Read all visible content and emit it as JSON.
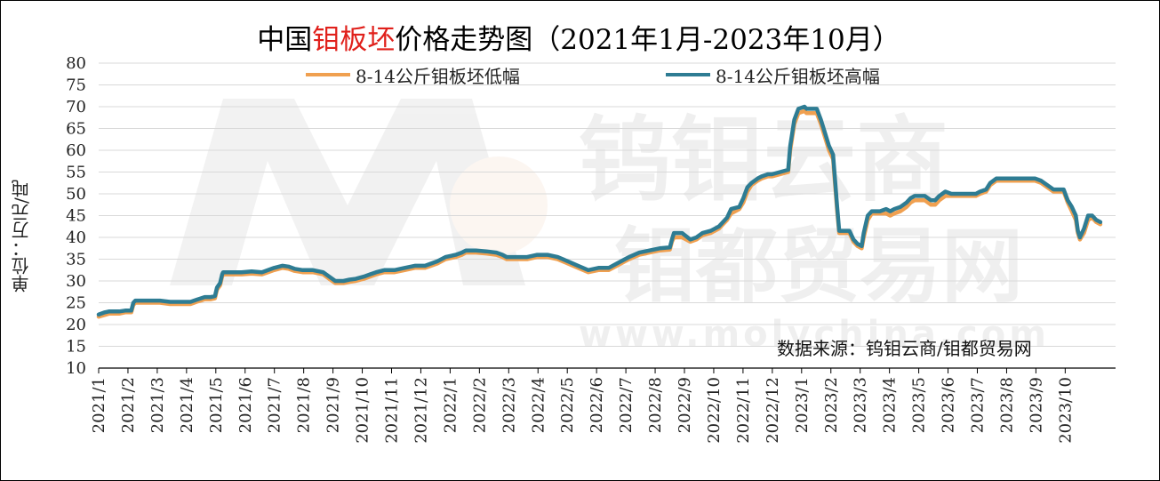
{
  "title": {
    "prefix": "中国",
    "highlight": "钼板坯",
    "suffix": "价格走势图（2021年1月-2023年10月）",
    "highlight_color": "#e0201b"
  },
  "y_axis_label": "单位：万元/吨",
  "source_text": "数据来源：钨钼云商/钼都贸易网",
  "watermark": {
    "line1": "钨钼云商",
    "line2": "钼都贸易网",
    "url": "www.molychina.com"
  },
  "chart_data": {
    "type": "line",
    "title": "中国钼板坯价格走势图（2021年1月-2023年10月）",
    "ylabel": "单位：万元/吨",
    "xlabel": "",
    "ylim": [
      10,
      80
    ],
    "yticks": [
      10,
      15,
      20,
      25,
      30,
      35,
      40,
      45,
      50,
      55,
      60,
      65,
      70,
      75,
      80
    ],
    "x_tick_labels": [
      "2021/1",
      "2021/2",
      "2021/3",
      "2021/4",
      "2021/5",
      "2021/6",
      "2021/7",
      "2021/8",
      "2021/9",
      "2021/10",
      "2021/11",
      "2021/12",
      "2022/1",
      "2022/2",
      "2022/3",
      "2022/4",
      "2022/5",
      "2022/6",
      "2022/7",
      "2022/8",
      "2022/9",
      "2022/10",
      "2022/11",
      "2022/12",
      "2023/1",
      "2023/2",
      "2023/3",
      "2023/4",
      "2023/5",
      "2023/6",
      "2023/7",
      "2023/8",
      "2023/9",
      "2023/10"
    ],
    "x_range_months": [
      0,
      34.2
    ],
    "grid": "horizontal",
    "legend_position": "top",
    "series": [
      {
        "name": "8-14公斤钼板坯低幅",
        "color": "#f0a050",
        "points": [
          [
            0,
            21.8
          ],
          [
            0.3,
            22.2
          ],
          [
            0.5,
            22.5
          ],
          [
            1,
            22.5
          ],
          [
            1.3,
            22.8
          ],
          [
            1.6,
            22.8
          ],
          [
            1.7,
            24.5
          ],
          [
            1.8,
            25
          ],
          [
            2.5,
            25
          ],
          [
            3,
            25
          ],
          [
            3.5,
            24.7
          ],
          [
            4.5,
            24.7
          ],
          [
            4.8,
            25.2
          ],
          [
            5,
            25.5
          ],
          [
            5.2,
            25.8
          ],
          [
            5.5,
            25.8
          ],
          [
            5.7,
            26
          ],
          [
            5.8,
            28
          ],
          [
            5.95,
            29
          ],
          [
            6.05,
            31
          ],
          [
            6.1,
            31.5
          ],
          [
            7,
            31.5
          ],
          [
            7.5,
            31.7
          ],
          [
            8,
            31.5
          ],
          [
            8.3,
            32
          ],
          [
            8.6,
            32.5
          ],
          [
            9,
            33
          ],
          [
            9.3,
            32.8
          ],
          [
            9.6,
            32.3
          ],
          [
            10,
            32
          ],
          [
            10.5,
            32
          ],
          [
            11,
            31.5
          ],
          [
            11.3,
            30.5
          ],
          [
            11.6,
            29.5
          ],
          [
            12,
            29.5
          ],
          [
            12.3,
            29.8
          ],
          [
            12.6,
            30
          ],
          [
            13,
            30.5
          ],
          [
            13.3,
            31
          ],
          [
            13.6,
            31.5
          ],
          [
            14,
            32
          ],
          [
            14.5,
            32
          ],
          [
            15,
            32.5
          ],
          [
            15.5,
            33
          ],
          [
            16,
            33
          ],
          [
            16.3,
            33.5
          ],
          [
            16.6,
            34
          ],
          [
            17,
            35
          ],
          [
            17.5,
            35.5
          ],
          [
            17.8,
            36
          ],
          [
            18,
            36.5
          ],
          [
            18.5,
            36.5
          ],
          [
            19,
            36.3
          ],
          [
            19.5,
            36
          ],
          [
            19.8,
            35.5
          ],
          [
            20,
            35
          ],
          [
            20.5,
            35
          ],
          [
            21,
            35
          ],
          [
            21.5,
            35.5
          ],
          [
            22,
            35.5
          ],
          [
            22.5,
            35
          ],
          [
            23,
            34
          ],
          [
            23.5,
            33
          ],
          [
            24,
            32
          ],
          [
            24.5,
            32.5
          ],
          [
            25,
            32.5
          ],
          [
            25.4,
            33.5
          ],
          [
            25.8,
            34.5
          ],
          [
            26,
            35
          ],
          [
            26.5,
            36
          ],
          [
            27,
            36.5
          ],
          [
            27.5,
            37
          ],
          [
            28,
            37.2
          ],
          [
            28.1,
            39
          ],
          [
            28.2,
            40
          ],
          [
            28.6,
            40
          ],
          [
            29,
            39
          ],
          [
            29.3,
            39.5
          ],
          [
            29.6,
            40.5
          ],
          [
            30,
            41
          ],
          [
            30.4,
            42
          ],
          [
            30.8,
            44
          ],
          [
            31,
            45.5
          ],
          [
            31.4,
            46.5
          ],
          [
            31.6,
            48
          ],
          [
            31.8,
            50.5
          ],
          [
            32,
            52
          ],
          [
            32.3,
            53
          ],
          [
            32.5,
            53.5
          ],
          [
            32.8,
            54
          ],
          [
            33,
            54
          ],
          [
            33.4,
            54.5
          ],
          [
            33.8,
            55
          ],
          [
            33.9,
            60
          ],
          [
            34.1,
            66
          ],
          [
            34.3,
            68.5
          ],
          [
            34.6,
            69
          ],
          [
            34.7,
            68.5
          ],
          [
            34.9,
            68.5
          ],
          [
            35.2,
            68.5
          ],
          [
            35.4,
            66
          ],
          [
            35.6,
            63
          ],
          [
            35.8,
            60
          ],
          [
            36,
            58
          ],
          [
            36.1,
            52
          ],
          [
            36.2,
            46
          ],
          [
            36.3,
            41
          ],
          [
            36.5,
            41
          ],
          [
            36.8,
            41
          ],
          [
            37,
            39
          ],
          [
            37.2,
            38
          ],
          [
            37.4,
            37.5
          ],
          [
            37.5,
            40
          ],
          [
            37.7,
            44
          ],
          [
            37.9,
            45.5
          ],
          [
            38.3,
            45.5
          ],
          [
            38.6,
            45.5
          ],
          [
            38.8,
            45
          ],
          [
            39,
            45.5
          ],
          [
            39.3,
            46
          ],
          [
            39.6,
            47
          ],
          [
            39.8,
            48
          ],
          [
            40,
            48.5
          ],
          [
            40.5,
            48.5
          ],
          [
            40.8,
            47.5
          ],
          [
            41,
            47.5
          ],
          [
            41.2,
            48.5
          ],
          [
            41.5,
            49.5
          ],
          [
            41.8,
            49.5
          ],
          [
            42.2,
            49.5
          ],
          [
            42.6,
            49.5
          ],
          [
            43,
            49.5
          ],
          [
            43.2,
            50
          ],
          [
            43.5,
            50.5
          ],
          [
            43.7,
            52
          ],
          [
            44,
            53
          ],
          [
            44.5,
            53
          ],
          [
            45,
            53
          ],
          [
            45.5,
            53
          ],
          [
            45.9,
            53
          ],
          [
            46.2,
            52.5
          ],
          [
            46.5,
            51.5
          ],
          [
            46.8,
            50.5
          ],
          [
            47,
            50.5
          ],
          [
            47.3,
            50.5
          ],
          [
            47.5,
            48
          ],
          [
            47.7,
            46
          ],
          [
            47.9,
            44
          ],
          [
            48,
            41
          ],
          [
            48.1,
            39.5
          ],
          [
            48.3,
            41
          ],
          [
            48.5,
            44
          ],
          [
            48.7,
            44.5
          ],
          [
            48.9,
            43.5
          ],
          [
            49.1,
            43
          ]
        ]
      },
      {
        "name": "8-14公斤钼板坯高幅",
        "color": "#2e7c93",
        "points": [
          [
            0,
            22.3
          ],
          [
            0.3,
            22.8
          ],
          [
            0.5,
            23
          ],
          [
            1,
            23
          ],
          [
            1.3,
            23.2
          ],
          [
            1.6,
            23.2
          ],
          [
            1.7,
            25
          ],
          [
            1.8,
            25.5
          ],
          [
            2.5,
            25.5
          ],
          [
            3,
            25.5
          ],
          [
            3.5,
            25.2
          ],
          [
            4.5,
            25.2
          ],
          [
            4.8,
            25.7
          ],
          [
            5,
            26
          ],
          [
            5.2,
            26.3
          ],
          [
            5.5,
            26.3
          ],
          [
            5.7,
            26.5
          ],
          [
            5.8,
            28.5
          ],
          [
            5.95,
            29.5
          ],
          [
            6.05,
            31.5
          ],
          [
            6.1,
            32
          ],
          [
            7,
            32
          ],
          [
            7.5,
            32.2
          ],
          [
            8,
            32
          ],
          [
            8.3,
            32.5
          ],
          [
            8.6,
            33
          ],
          [
            9,
            33.5
          ],
          [
            9.3,
            33.3
          ],
          [
            9.6,
            32.8
          ],
          [
            10,
            32.5
          ],
          [
            10.5,
            32.5
          ],
          [
            11,
            32
          ],
          [
            11.3,
            31
          ],
          [
            11.6,
            30
          ],
          [
            12,
            30
          ],
          [
            12.3,
            30.3
          ],
          [
            12.6,
            30.5
          ],
          [
            13,
            31
          ],
          [
            13.3,
            31.5
          ],
          [
            13.6,
            32
          ],
          [
            14,
            32.5
          ],
          [
            14.5,
            32.5
          ],
          [
            15,
            33
          ],
          [
            15.5,
            33.5
          ],
          [
            16,
            33.5
          ],
          [
            16.3,
            34
          ],
          [
            16.6,
            34.5
          ],
          [
            17,
            35.5
          ],
          [
            17.5,
            36
          ],
          [
            17.8,
            36.5
          ],
          [
            18,
            37
          ],
          [
            18.5,
            37
          ],
          [
            19,
            36.8
          ],
          [
            19.5,
            36.5
          ],
          [
            19.8,
            36
          ],
          [
            20,
            35.5
          ],
          [
            20.5,
            35.5
          ],
          [
            21,
            35.5
          ],
          [
            21.5,
            36
          ],
          [
            22,
            36
          ],
          [
            22.5,
            35.5
          ],
          [
            23,
            34.5
          ],
          [
            23.5,
            33.5
          ],
          [
            24,
            32.5
          ],
          [
            24.5,
            33
          ],
          [
            25,
            33
          ],
          [
            25.4,
            34
          ],
          [
            25.8,
            35
          ],
          [
            26,
            35.5
          ],
          [
            26.5,
            36.5
          ],
          [
            27,
            37
          ],
          [
            27.5,
            37.5
          ],
          [
            28,
            37.7
          ],
          [
            28.1,
            39.5
          ],
          [
            28.2,
            41
          ],
          [
            28.6,
            41
          ],
          [
            29,
            39.5
          ],
          [
            29.3,
            40
          ],
          [
            29.6,
            41
          ],
          [
            30,
            41.5
          ],
          [
            30.4,
            42.5
          ],
          [
            30.8,
            44.5
          ],
          [
            31,
            46.5
          ],
          [
            31.4,
            47
          ],
          [
            31.6,
            49
          ],
          [
            31.8,
            51.5
          ],
          [
            32,
            52.5
          ],
          [
            32.3,
            53.5
          ],
          [
            32.5,
            54
          ],
          [
            32.8,
            54.5
          ],
          [
            33,
            54.5
          ],
          [
            33.4,
            55
          ],
          [
            33.8,
            55.5
          ],
          [
            33.9,
            61
          ],
          [
            34.1,
            67
          ],
          [
            34.3,
            69.5
          ],
          [
            34.6,
            70
          ],
          [
            34.7,
            69.5
          ],
          [
            34.9,
            69.5
          ],
          [
            35.2,
            69.5
          ],
          [
            35.4,
            67
          ],
          [
            35.6,
            64
          ],
          [
            35.8,
            61
          ],
          [
            36,
            59
          ],
          [
            36.1,
            53
          ],
          [
            36.2,
            47
          ],
          [
            36.3,
            41.5
          ],
          [
            36.5,
            41.5
          ],
          [
            36.8,
            41.5
          ],
          [
            37,
            39.5
          ],
          [
            37.2,
            38.5
          ],
          [
            37.4,
            38
          ],
          [
            37.5,
            41
          ],
          [
            37.7,
            45
          ],
          [
            37.9,
            46
          ],
          [
            38.3,
            46
          ],
          [
            38.6,
            46.5
          ],
          [
            38.8,
            46
          ],
          [
            39,
            46.5
          ],
          [
            39.3,
            47
          ],
          [
            39.6,
            48
          ],
          [
            39.8,
            49
          ],
          [
            40,
            49.5
          ],
          [
            40.5,
            49.5
          ],
          [
            40.8,
            48.5
          ],
          [
            41,
            48.5
          ],
          [
            41.2,
            49.5
          ],
          [
            41.5,
            50.5
          ],
          [
            41.8,
            50
          ],
          [
            42.2,
            50
          ],
          [
            42.6,
            50
          ],
          [
            43,
            50
          ],
          [
            43.2,
            50.5
          ],
          [
            43.5,
            51
          ],
          [
            43.7,
            52.5
          ],
          [
            44,
            53.5
          ],
          [
            44.5,
            53.5
          ],
          [
            45,
            53.5
          ],
          [
            45.5,
            53.5
          ],
          [
            45.9,
            53.5
          ],
          [
            46.2,
            53
          ],
          [
            46.5,
            52
          ],
          [
            46.8,
            51
          ],
          [
            47,
            51
          ],
          [
            47.3,
            51
          ],
          [
            47.5,
            48.5
          ],
          [
            47.7,
            47
          ],
          [
            47.9,
            45
          ],
          [
            48,
            41.5
          ],
          [
            48.1,
            40
          ],
          [
            48.3,
            42
          ],
          [
            48.5,
            45
          ],
          [
            48.7,
            45
          ],
          [
            48.9,
            44
          ],
          [
            49.1,
            43.5
          ]
        ]
      }
    ]
  }
}
